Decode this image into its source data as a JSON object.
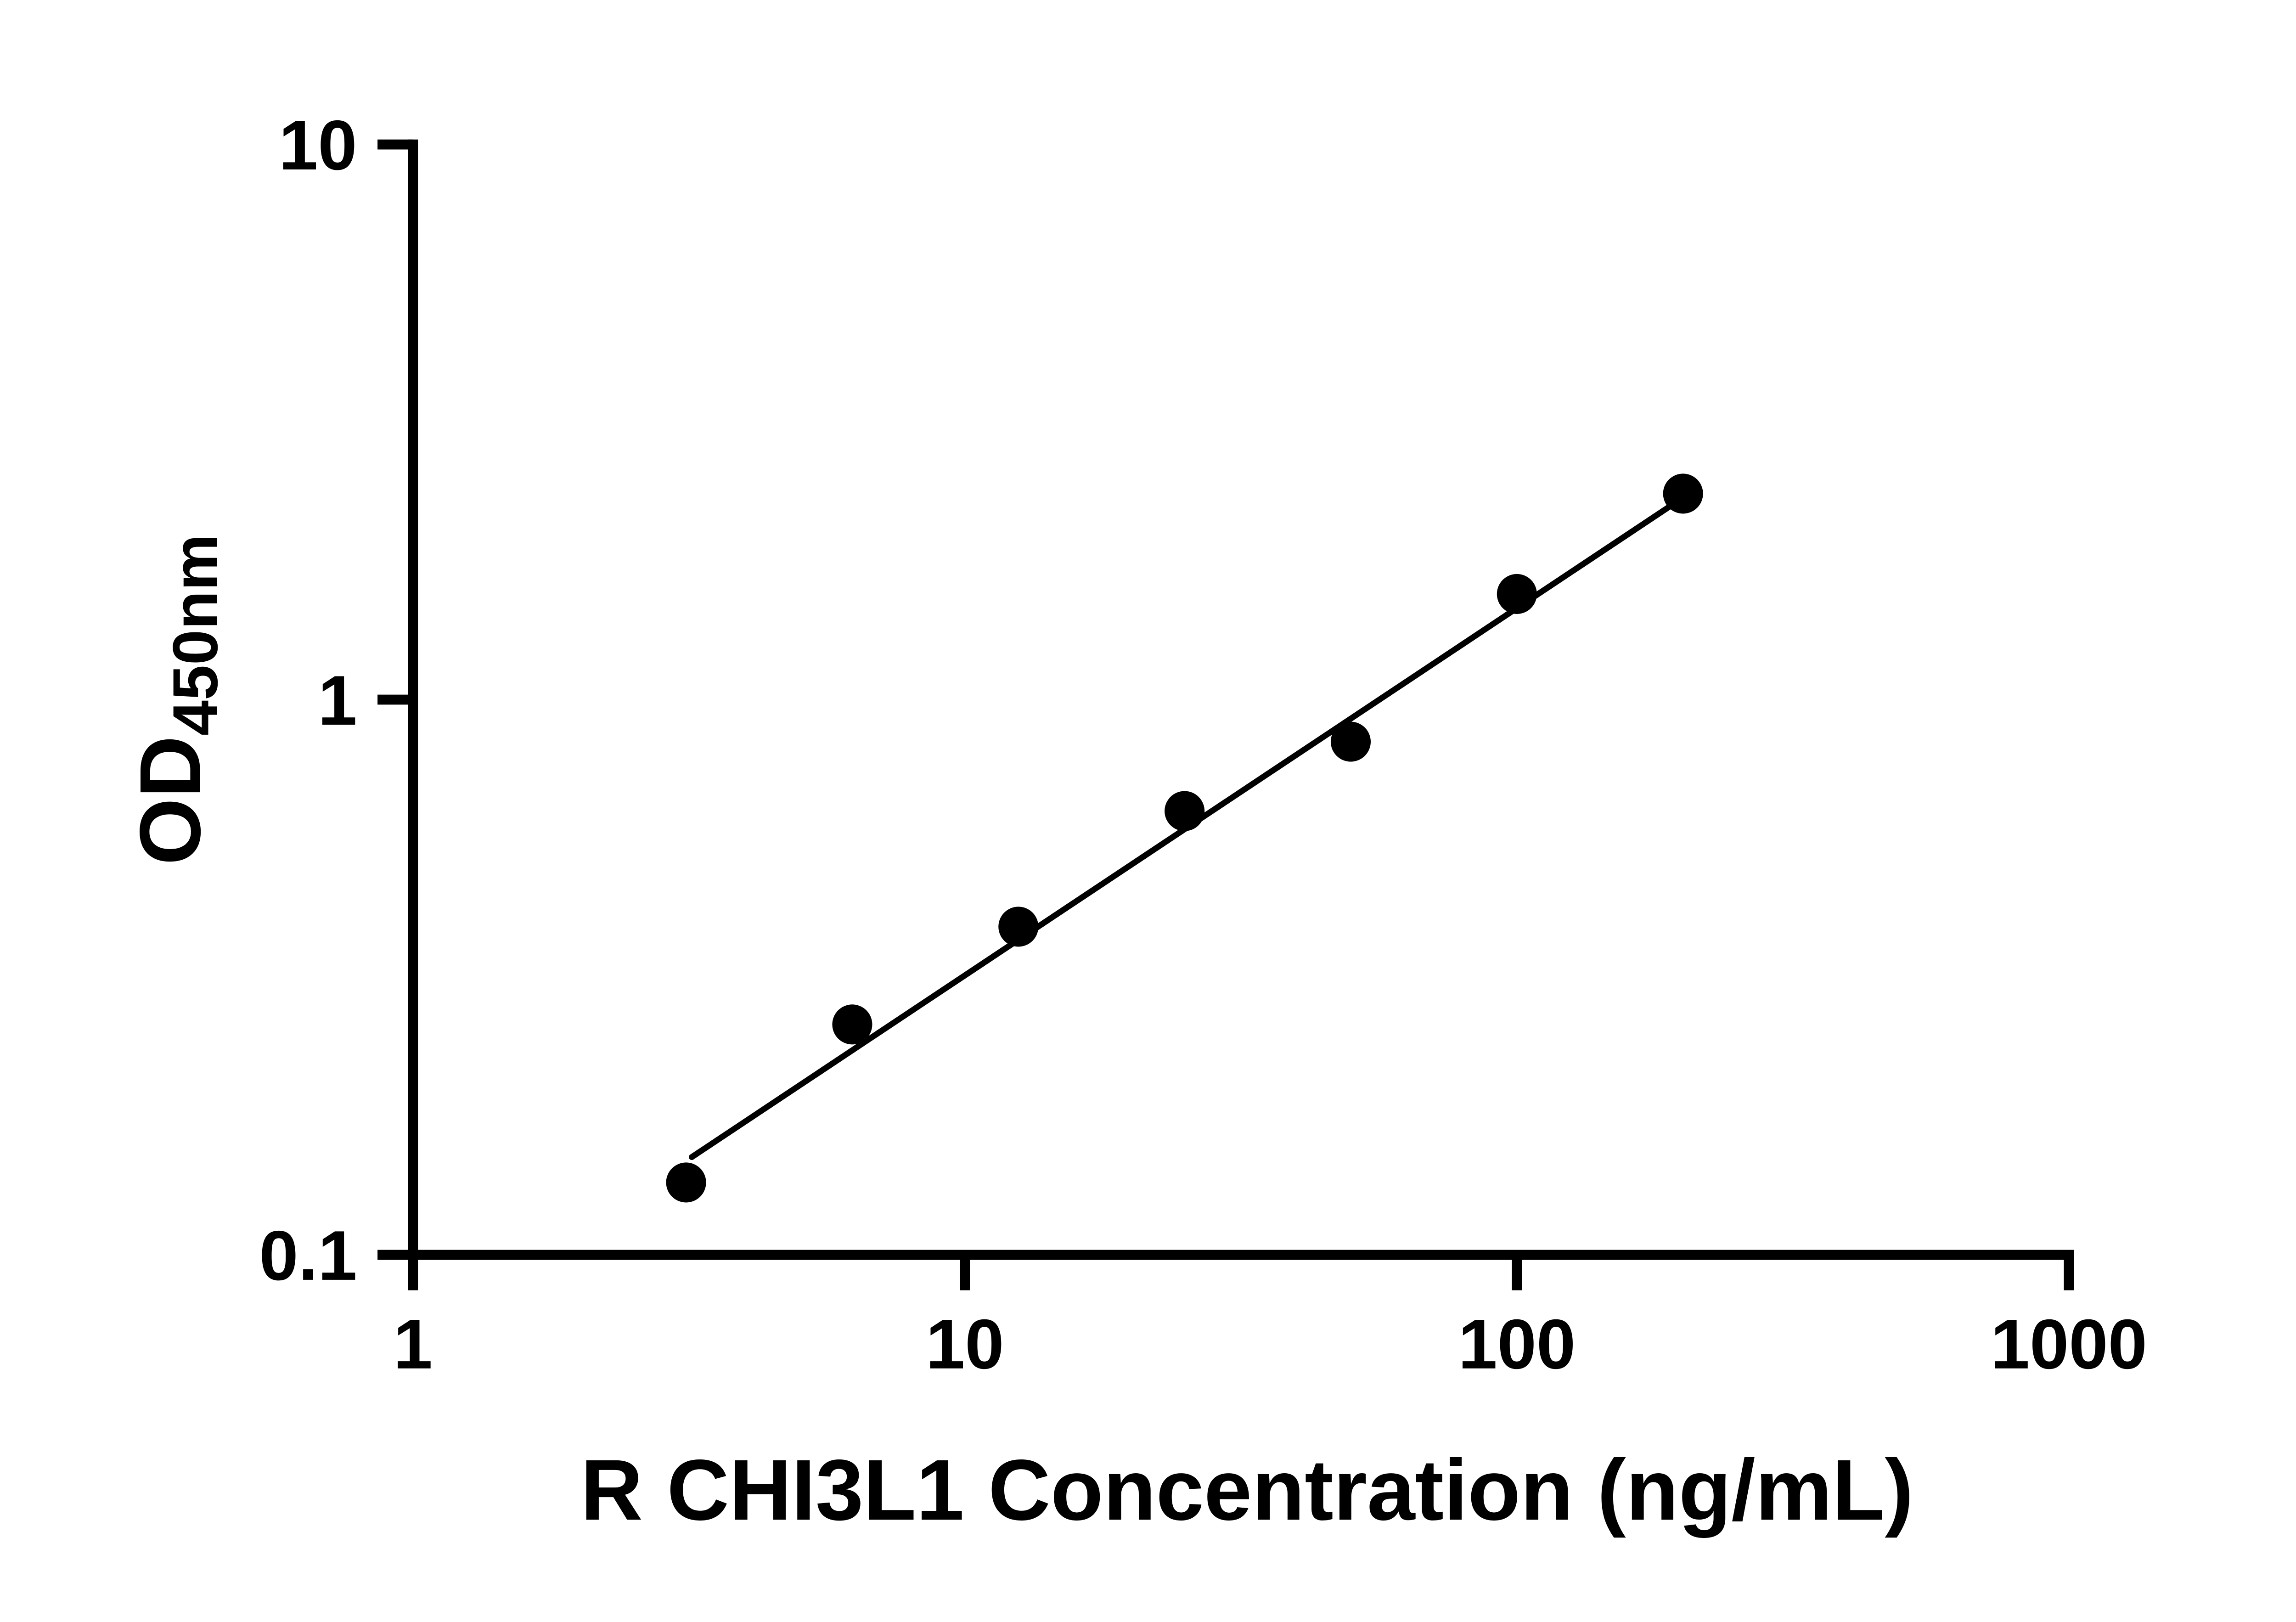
{
  "chart_data": {
    "type": "scatter",
    "title": "",
    "xlabel": "R CHI3L1 Concentration (ng/mL)",
    "ylabel": "OD",
    "ylabel_subscript": "450nm",
    "x_scale": "log",
    "y_scale": "log",
    "xlim": [
      1,
      1000
    ],
    "ylim": [
      0.1,
      10
    ],
    "x_ticks": [
      1,
      10,
      100,
      1000
    ],
    "x_tick_labels": [
      "1",
      "10",
      "100",
      "1000"
    ],
    "y_ticks": [
      0.1,
      1,
      10
    ],
    "y_tick_labels": [
      "0.1",
      "1",
      "10"
    ],
    "grid": "off",
    "legend": "none",
    "series": [
      {
        "name": "standard-curve-points",
        "x": [
          3.125,
          6.25,
          12.5,
          25,
          50,
          100,
          200
        ],
        "y": [
          0.135,
          0.26,
          0.39,
          0.63,
          0.84,
          1.55,
          2.35
        ]
      }
    ],
    "trend_line": {
      "x1": 3.2,
      "y1": 0.15,
      "x2": 205,
      "y2": 2.35
    },
    "axis_color": "#000000",
    "marker_color": "#000000",
    "line_color": "#000000",
    "text_color": "#000000",
    "background_color": "#ffffff"
  }
}
